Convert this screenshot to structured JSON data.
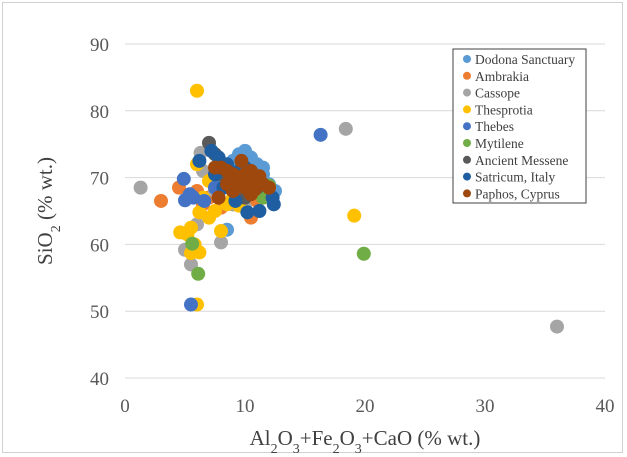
{
  "chart_data": {
    "type": "scatter",
    "xlabel": {
      "parts": [
        "Al",
        "2",
        "O",
        "3",
        "+Fe",
        "2",
        "O",
        "3",
        "+CaO (% wt.)"
      ]
    },
    "ylabel": {
      "parts": [
        "SiO",
        "2",
        " (% wt.)"
      ]
    },
    "xlim": [
      0,
      40
    ],
    "ylim": [
      40,
      90
    ],
    "xticks": [
      "0",
      "10",
      "20",
      "30",
      "40"
    ],
    "yticks": [
      "40",
      "50",
      "60",
      "70",
      "80",
      "90"
    ],
    "grid": "horizontal",
    "legend_position": "top-right",
    "series": [
      {
        "name": "Dodona Sanctuary",
        "color": "#5b9bd5",
        "points": [
          [
            9.5,
            73.5
          ],
          [
            10,
            74
          ],
          [
            10.5,
            73
          ],
          [
            11,
            72
          ],
          [
            11.5,
            71.5
          ],
          [
            9,
            72.5
          ],
          [
            8.5,
            71
          ],
          [
            10,
            71
          ],
          [
            11,
            70
          ],
          [
            12,
            69
          ],
          [
            8,
            70
          ],
          [
            9,
            69
          ],
          [
            10,
            70
          ],
          [
            9.5,
            72
          ],
          [
            10.5,
            72.5
          ],
          [
            11.5,
            70.5
          ],
          [
            12.5,
            68
          ],
          [
            8.5,
            62.2
          ],
          [
            10,
            69.5
          ],
          [
            11,
            68.5
          ]
        ]
      },
      {
        "name": "Ambrakia",
        "color": "#ed7d31",
        "points": [
          [
            3,
            66.5
          ],
          [
            4.5,
            68.5
          ],
          [
            6,
            68
          ],
          [
            7,
            67
          ],
          [
            8,
            65.5
          ],
          [
            9,
            66
          ],
          [
            10,
            67
          ],
          [
            10.5,
            64
          ],
          [
            6.5,
            66
          ],
          [
            8.5,
            69
          ],
          [
            9.5,
            68
          ],
          [
            11,
            66.5
          ]
        ]
      },
      {
        "name": "Cassope",
        "color": "#a5a5a5",
        "points": [
          [
            1.3,
            68.5
          ],
          [
            5,
            59.2
          ],
          [
            5.5,
            57
          ],
          [
            6,
            63
          ],
          [
            6.3,
            73.7
          ],
          [
            6.5,
            71
          ],
          [
            8,
            60.3
          ],
          [
            9,
            66
          ],
          [
            18.4,
            77.3
          ],
          [
            36,
            47.7
          ],
          [
            7.5,
            68
          ],
          [
            10,
            65.5
          ]
        ]
      },
      {
        "name": "Thesprotia",
        "color": "#ffc000",
        "points": [
          [
            6,
            83
          ],
          [
            6,
            72
          ],
          [
            4.6,
            61.8
          ],
          [
            5.2,
            61.5
          ],
          [
            5.8,
            60
          ],
          [
            6.2,
            58.8
          ],
          [
            5.5,
            58.7
          ],
          [
            6,
            51
          ],
          [
            6.2,
            64.8
          ],
          [
            7,
            64
          ],
          [
            7.5,
            65
          ],
          [
            8,
            62
          ],
          [
            8.5,
            66
          ],
          [
            9,
            67
          ],
          [
            19.1,
            64.3
          ],
          [
            6.5,
            67
          ],
          [
            7,
            69.5
          ],
          [
            5.5,
            62.5
          ],
          [
            9.5,
            65.8
          ]
        ]
      },
      {
        "name": "Thebes",
        "color": "#4472c4",
        "points": [
          [
            4.9,
            69.8
          ],
          [
            5.4,
            67.5
          ],
          [
            5.7,
            67
          ],
          [
            6.6,
            66.5
          ],
          [
            5.5,
            51
          ],
          [
            16.3,
            76.4
          ],
          [
            5,
            66.6
          ],
          [
            7.5,
            68.5
          ]
        ]
      },
      {
        "name": "Mytilene",
        "color": "#70ad47",
        "points": [
          [
            5.6,
            60.1
          ],
          [
            6.1,
            55.6
          ],
          [
            12,
            68.8
          ],
          [
            19.9,
            58.6
          ],
          [
            11.5,
            67
          ]
        ]
      },
      {
        "name": "Ancient Messene",
        "color": "#595959",
        "points": [
          [
            7,
            75.2
          ],
          [
            7.5,
            73.5
          ],
          [
            8,
            72
          ],
          [
            9,
            69
          ],
          [
            10,
            67
          ],
          [
            11,
            68.5
          ],
          [
            7.8,
            70.5
          ]
        ]
      },
      {
        "name": "Satricum, Italy",
        "color": "#1f5ea0",
        "points": [
          [
            6.2,
            72.5
          ],
          [
            7.2,
            74
          ],
          [
            7.8,
            73
          ],
          [
            8.5,
            72
          ],
          [
            9.5,
            71
          ],
          [
            10.5,
            70
          ],
          [
            11.5,
            69
          ],
          [
            12.3,
            67
          ],
          [
            12.4,
            66
          ],
          [
            11.2,
            65
          ],
          [
            10.2,
            64.8
          ],
          [
            9.2,
            66.5
          ],
          [
            8.2,
            68.5
          ],
          [
            7.5,
            70.5
          ],
          [
            10,
            71.5
          ]
        ]
      },
      {
        "name": "Paphos, Cyprus",
        "color": "#9e480e",
        "points": [
          [
            7.5,
            71.5
          ],
          [
            8,
            71.5
          ],
          [
            8.5,
            71
          ],
          [
            9,
            70.5
          ],
          [
            9.5,
            70
          ],
          [
            10,
            70.5
          ],
          [
            10.5,
            71
          ],
          [
            11,
            69.5
          ],
          [
            11.5,
            69
          ],
          [
            12,
            68.5
          ],
          [
            9,
            68
          ],
          [
            10,
            68.5
          ],
          [
            10.5,
            67.5
          ],
          [
            8.5,
            69
          ],
          [
            7.8,
            67
          ],
          [
            9.7,
            72.5
          ],
          [
            10.2,
            69
          ],
          [
            11.2,
            70.2
          ],
          [
            9.3,
            69.2
          ],
          [
            10.8,
            68.2
          ]
        ]
      }
    ]
  }
}
